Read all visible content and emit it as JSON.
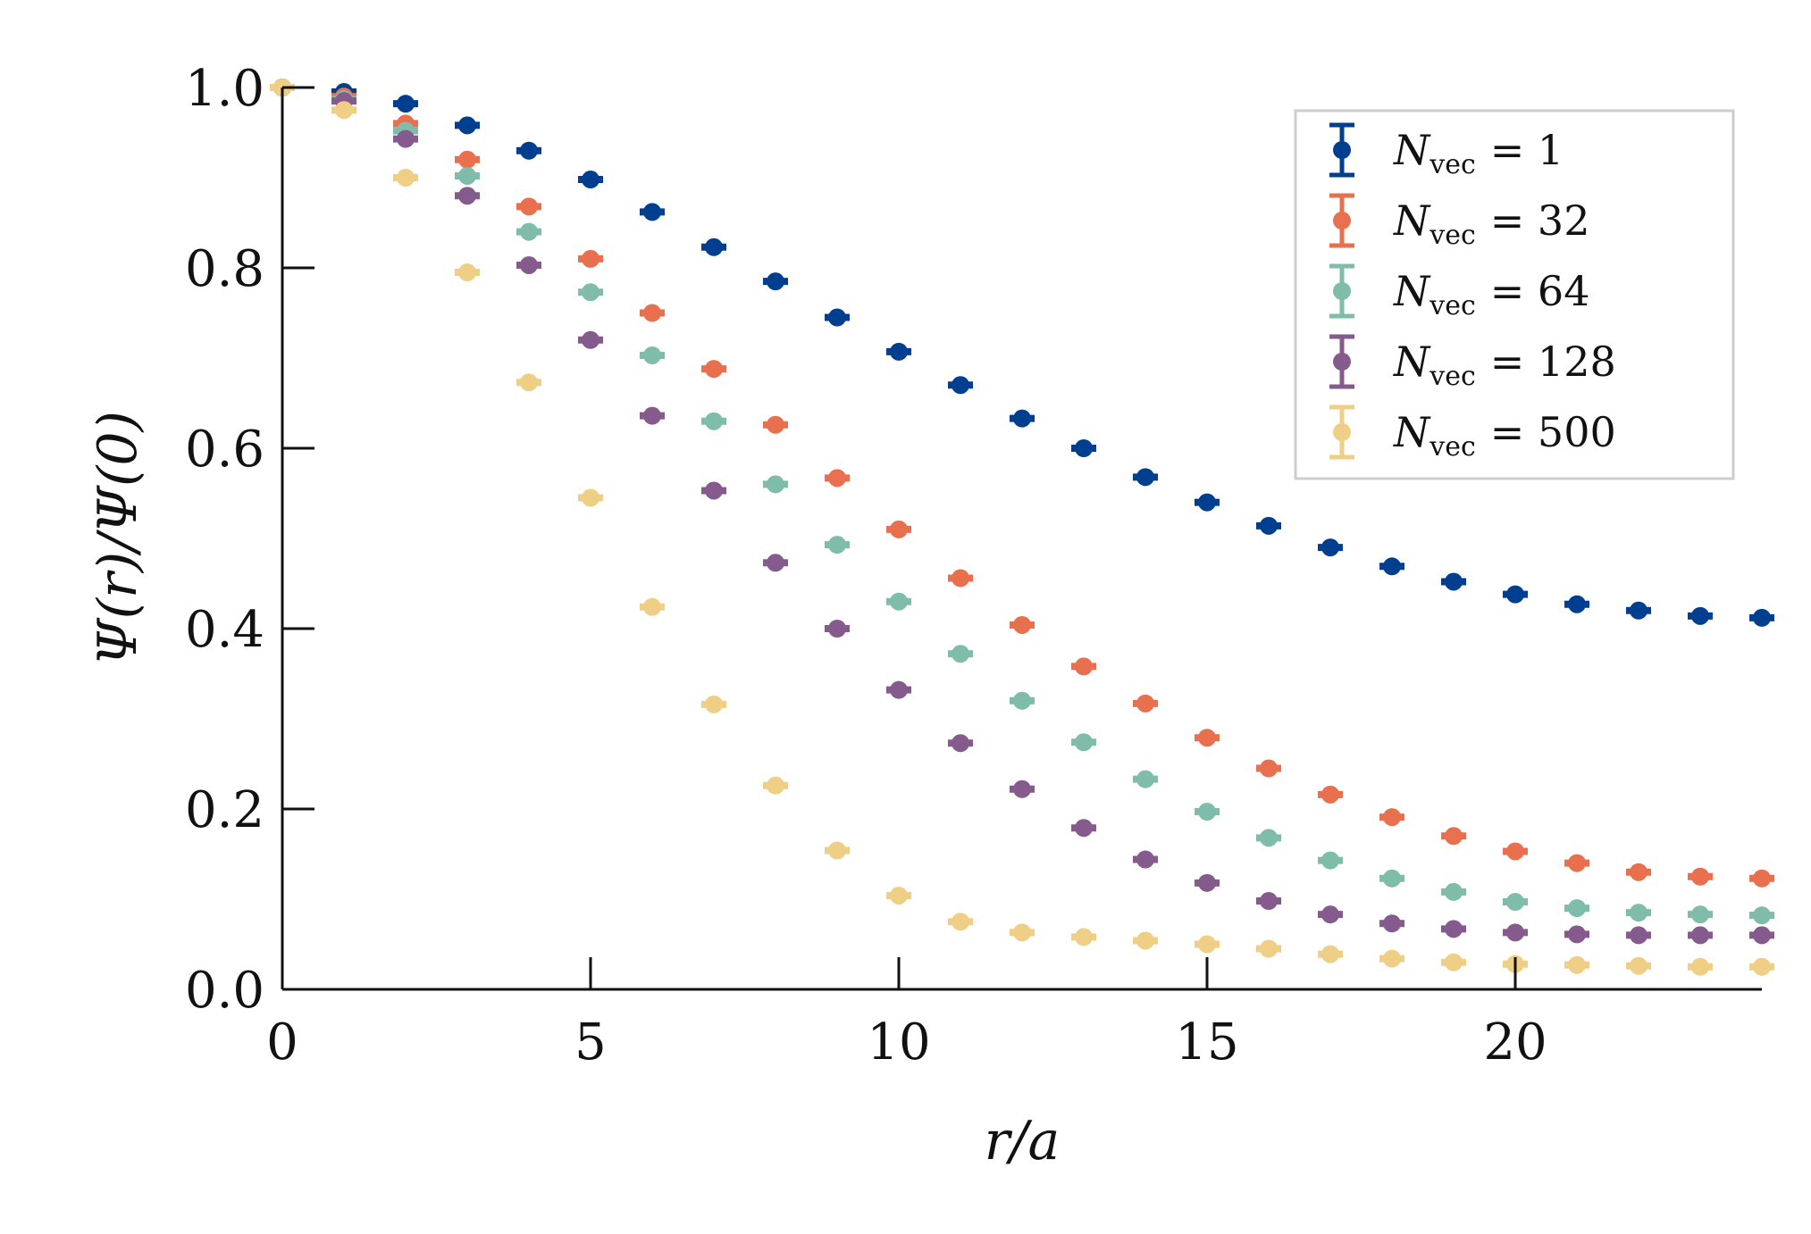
{
  "chart_data": {
    "type": "scatter",
    "title": "",
    "xlabel": "r/a",
    "ylabel": "Ψ(r)/Ψ(0)",
    "xlim": [
      0,
      24
    ],
    "ylim": [
      0,
      1.0
    ],
    "x_ticks": [
      "0",
      "5",
      "10",
      "15",
      "20"
    ],
    "y_ticks": [
      "0.0",
      "0.2",
      "0.4",
      "0.6",
      "0.8",
      "1.0"
    ],
    "grid": false,
    "legend_position": "top-right",
    "x": [
      0,
      1,
      2,
      3,
      4,
      5,
      6,
      7,
      8,
      9,
      10,
      11,
      12,
      13,
      14,
      15,
      16,
      17,
      18,
      19,
      20,
      21,
      22,
      23,
      24
    ],
    "series": [
      {
        "name": "N_vec = 1",
        "legend_label": "N",
        "legend_sub": "vec",
        "legend_value": "= 1",
        "color": "#003f8f",
        "values": [
          1.0,
          0.995,
          0.982,
          0.958,
          0.93,
          0.898,
          0.862,
          0.823,
          0.785,
          0.745,
          0.707,
          0.67,
          0.633,
          0.6,
          0.568,
          0.54,
          0.514,
          0.49,
          0.469,
          0.452,
          0.438,
          0.427,
          0.42,
          0.414,
          0.412
        ]
      },
      {
        "name": "N_vec = 32",
        "legend_label": "N",
        "legend_sub": "vec",
        "legend_value": "= 32",
        "color": "#e8704f",
        "values": [
          1.0,
          0.99,
          0.96,
          0.92,
          0.868,
          0.81,
          0.75,
          0.688,
          0.626,
          0.567,
          0.51,
          0.456,
          0.404,
          0.358,
          0.317,
          0.279,
          0.245,
          0.216,
          0.191,
          0.17,
          0.153,
          0.14,
          0.13,
          0.125,
          0.123
        ]
      },
      {
        "name": "N_vec = 64",
        "legend_label": "N",
        "legend_sub": "vec",
        "legend_value": "= 64",
        "color": "#7fbcaa",
        "values": [
          1.0,
          0.987,
          0.952,
          0.902,
          0.84,
          0.773,
          0.703,
          0.63,
          0.56,
          0.493,
          0.43,
          0.372,
          0.32,
          0.274,
          0.233,
          0.197,
          0.168,
          0.143,
          0.123,
          0.108,
          0.097,
          0.09,
          0.085,
          0.083,
          0.082
        ]
      },
      {
        "name": "N_vec = 128",
        "legend_label": "N",
        "legend_sub": "vec",
        "legend_value": "= 128",
        "color": "#845b8c",
        "values": [
          1.0,
          0.985,
          0.943,
          0.88,
          0.803,
          0.72,
          0.636,
          0.553,
          0.473,
          0.4,
          0.332,
          0.273,
          0.222,
          0.179,
          0.144,
          0.118,
          0.098,
          0.083,
          0.073,
          0.067,
          0.063,
          0.061,
          0.06,
          0.06,
          0.06
        ]
      },
      {
        "name": "N_vec = 500",
        "legend_label": "N",
        "legend_sub": "vec",
        "legend_value": "= 500",
        "color": "#eecf85",
        "values": [
          1.0,
          0.975,
          0.9,
          0.795,
          0.673,
          0.545,
          0.424,
          0.316,
          0.226,
          0.154,
          0.104,
          0.075,
          0.063,
          0.058,
          0.054,
          0.05,
          0.045,
          0.039,
          0.034,
          0.03,
          0.028,
          0.027,
          0.026,
          0.025,
          0.025
        ]
      }
    ]
  }
}
